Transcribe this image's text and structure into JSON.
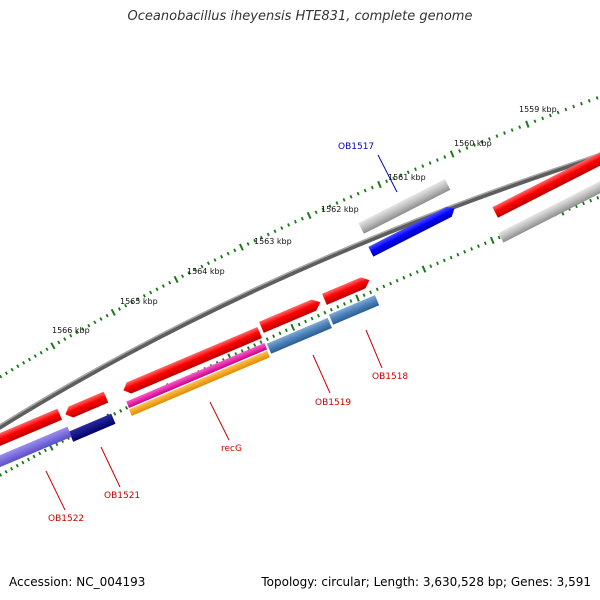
{
  "title": "Oceanobacillus iheyensis HTE831, complete genome",
  "footer": {
    "accession": "Accession: NC_004193",
    "topology": "Topology: circular; Length: 3,630,528 bp; Genes: 3,591"
  },
  "scale": {
    "unit": "kbp",
    "labels": [
      "1559 kbp",
      "1560 kbp",
      "1561 kbp",
      "1562 kbp",
      "1563 kbp",
      "1564 kbp",
      "1565 kbp",
      "1566 kbp"
    ]
  },
  "colors": {
    "tick_major": "#1a7a1a",
    "tick_minor": "#1a7a1a",
    "backbone": "#7a7a7a",
    "label_blue": "#0000cc",
    "label_red": "#cc0000"
  },
  "gene_labels": [
    {
      "id": "OB1517",
      "text": "OB1517",
      "color": "#0000cc"
    },
    {
      "id": "OB1518",
      "text": "OB1518",
      "color": "#cc0000"
    },
    {
      "id": "OB1519",
      "text": "OB1519",
      "color": "#cc0000"
    },
    {
      "id": "recG",
      "text": "recG",
      "color": "#cc0000"
    },
    {
      "id": "OB1521",
      "text": "OB1521",
      "color": "#cc0000"
    },
    {
      "id": "OB1522",
      "text": "OB1522",
      "color": "#cc0000"
    }
  ]
}
